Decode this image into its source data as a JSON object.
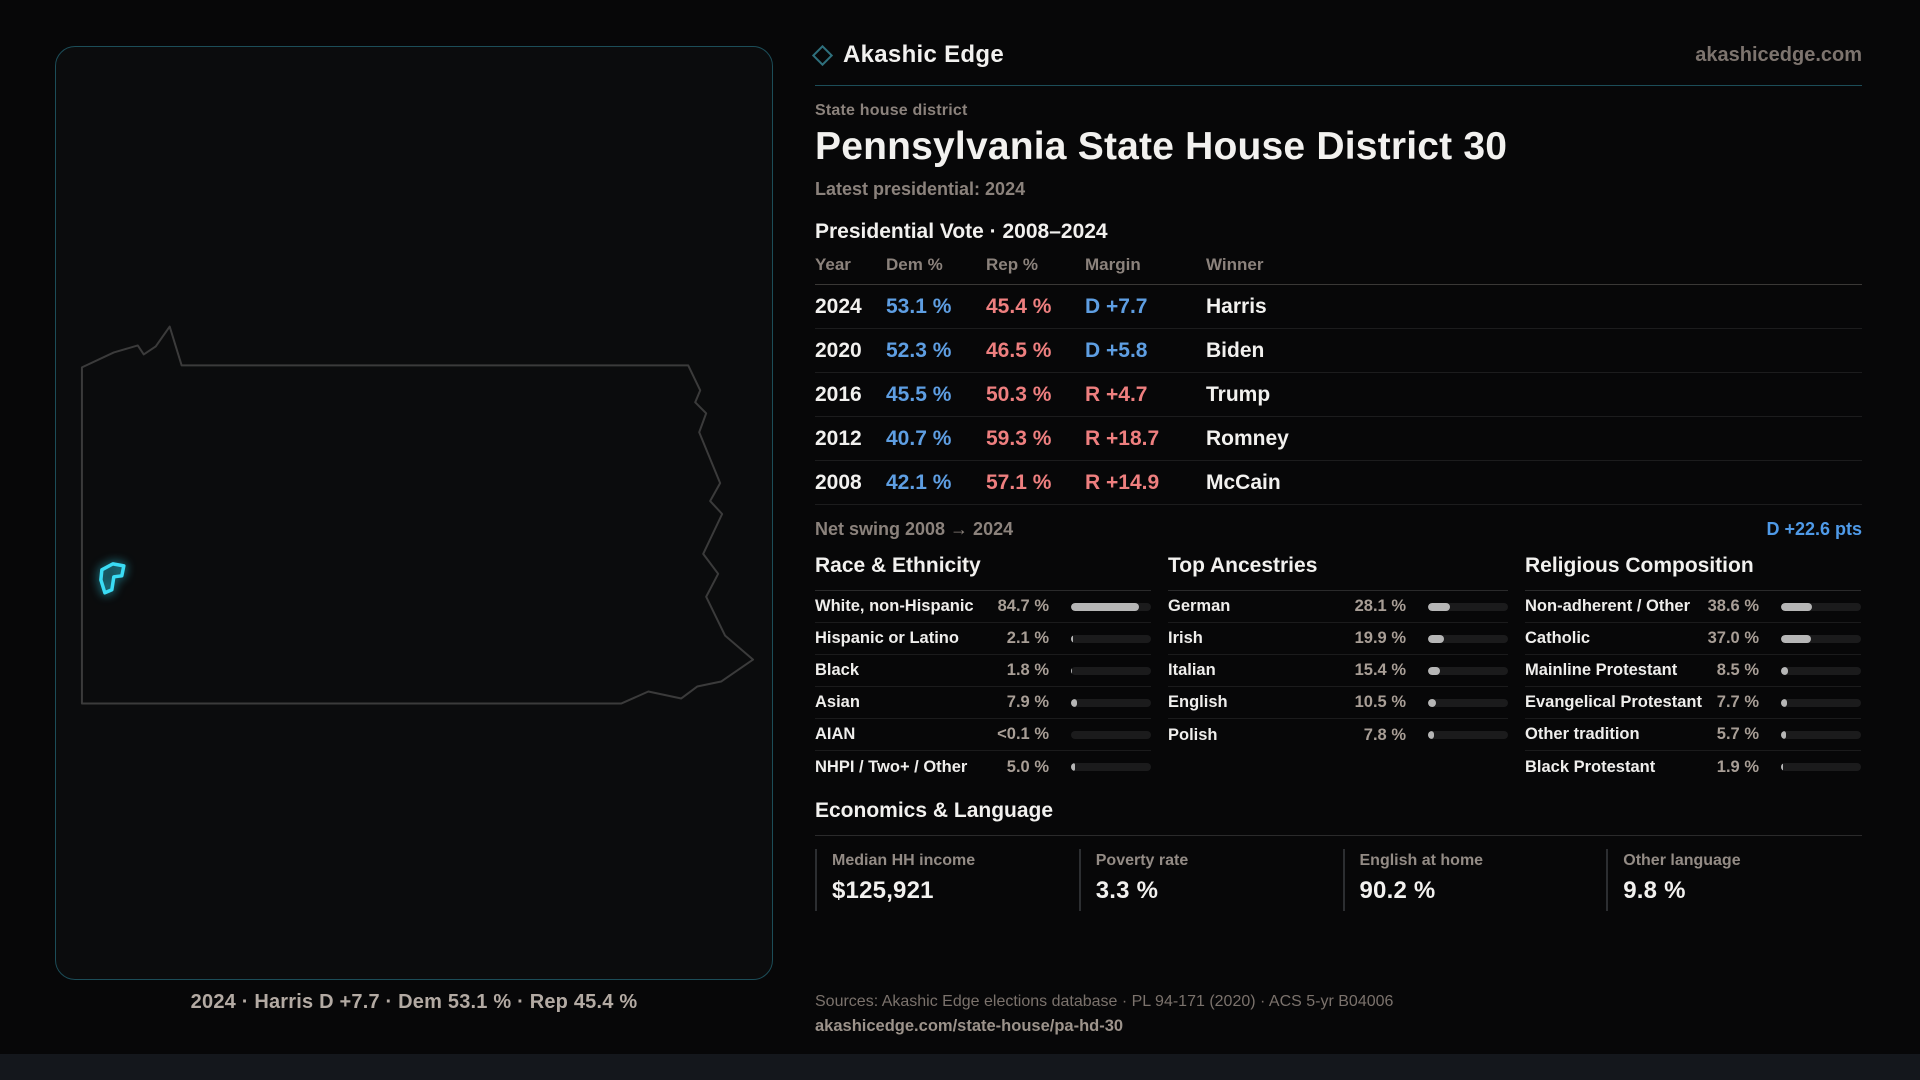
{
  "brand": {
    "name": "Akashic Edge",
    "domain": "akashicedge.com",
    "accent_color": "#1c4d58"
  },
  "page": {
    "kicker": "State house district",
    "title": "Pennsylvania State House District 30",
    "subtitle": "Latest presidential: 2024"
  },
  "map": {
    "caption": "2024 · Harris D +7.7 · Dem 53.1 % · Rep 45.4 %",
    "district_color": "#3adcf5",
    "outline_color": "#3b3b3b"
  },
  "vote_table": {
    "title": "Presidential Vote · 2008–2024",
    "columns": [
      "Year",
      "Dem %",
      "Rep %",
      "Margin",
      "Winner"
    ],
    "rows": [
      {
        "year": "2024",
        "dem": "53.1 %",
        "rep": "45.4 %",
        "margin": "D +7.7",
        "margin_party": "D",
        "winner": "Harris"
      },
      {
        "year": "2020",
        "dem": "52.3 %",
        "rep": "46.5 %",
        "margin": "D +5.8",
        "margin_party": "D",
        "winner": "Biden"
      },
      {
        "year": "2016",
        "dem": "45.5 %",
        "rep": "50.3 %",
        "margin": "R +4.7",
        "margin_party": "R",
        "winner": "Trump"
      },
      {
        "year": "2012",
        "dem": "40.7 %",
        "rep": "59.3 %",
        "margin": "R +18.7",
        "margin_party": "R",
        "winner": "Romney"
      },
      {
        "year": "2008",
        "dem": "42.1 %",
        "rep": "57.1 %",
        "margin": "R +14.9",
        "margin_party": "R",
        "winner": "McCain"
      }
    ],
    "net_swing_label": "Net swing 2008 → 2024",
    "net_swing_value": "D +22.6 pts"
  },
  "chart_data": [
    {
      "type": "bar",
      "title": "Race & Ethnicity",
      "categories": [
        "White, non-Hispanic",
        "Hispanic or Latino",
        "Black",
        "Asian",
        "AIAN",
        "NHPI / Two+ / Other"
      ],
      "values": [
        84.7,
        2.1,
        1.8,
        7.9,
        0.05,
        5.0
      ],
      "labels": [
        "84.7 %",
        "2.1 %",
        "1.8 %",
        "7.9 %",
        "<0.1 %",
        "5.0 %"
      ],
      "xlim": [
        0,
        100
      ]
    },
    {
      "type": "bar",
      "title": "Top Ancestries",
      "categories": [
        "German",
        "Irish",
        "Italian",
        "English",
        "Polish"
      ],
      "values": [
        28.1,
        19.9,
        15.4,
        10.5,
        7.8
      ],
      "labels": [
        "28.1 %",
        "19.9 %",
        "15.4 %",
        "10.5 %",
        "7.8 %"
      ],
      "xlim": [
        0,
        100
      ]
    },
    {
      "type": "bar",
      "title": "Religious Composition",
      "categories": [
        "Non-adherent / Other",
        "Catholic",
        "Mainline Protestant",
        "Evangelical Protestant",
        "Other tradition",
        "Black Protestant"
      ],
      "values": [
        38.6,
        37.0,
        8.5,
        7.7,
        5.7,
        1.9
      ],
      "labels": [
        "38.6 %",
        "37.0 %",
        "8.5 %",
        "7.7 %",
        "5.7 %",
        "1.9 %"
      ],
      "xlim": [
        0,
        100
      ]
    }
  ],
  "economics": {
    "title": "Economics & Language",
    "stats": [
      {
        "label": "Median HH income",
        "value": "$125,921"
      },
      {
        "label": "Poverty rate",
        "value": "3.3 %"
      },
      {
        "label": "English at home",
        "value": "90.2 %"
      },
      {
        "label": "Other language",
        "value": "9.8 %"
      }
    ]
  },
  "footer": {
    "sources": "Sources: Akashic Edge elections database · PL 94-171 (2020) · ACS 5-yr B04006",
    "permalink": "akashicedge.com/state-house/pa-hd-30"
  },
  "colors": {
    "dem": "#5e9ee2",
    "rep": "#ee7f7f",
    "bar_fill": "#b6b6b6",
    "swing": "#4f9ae8"
  }
}
